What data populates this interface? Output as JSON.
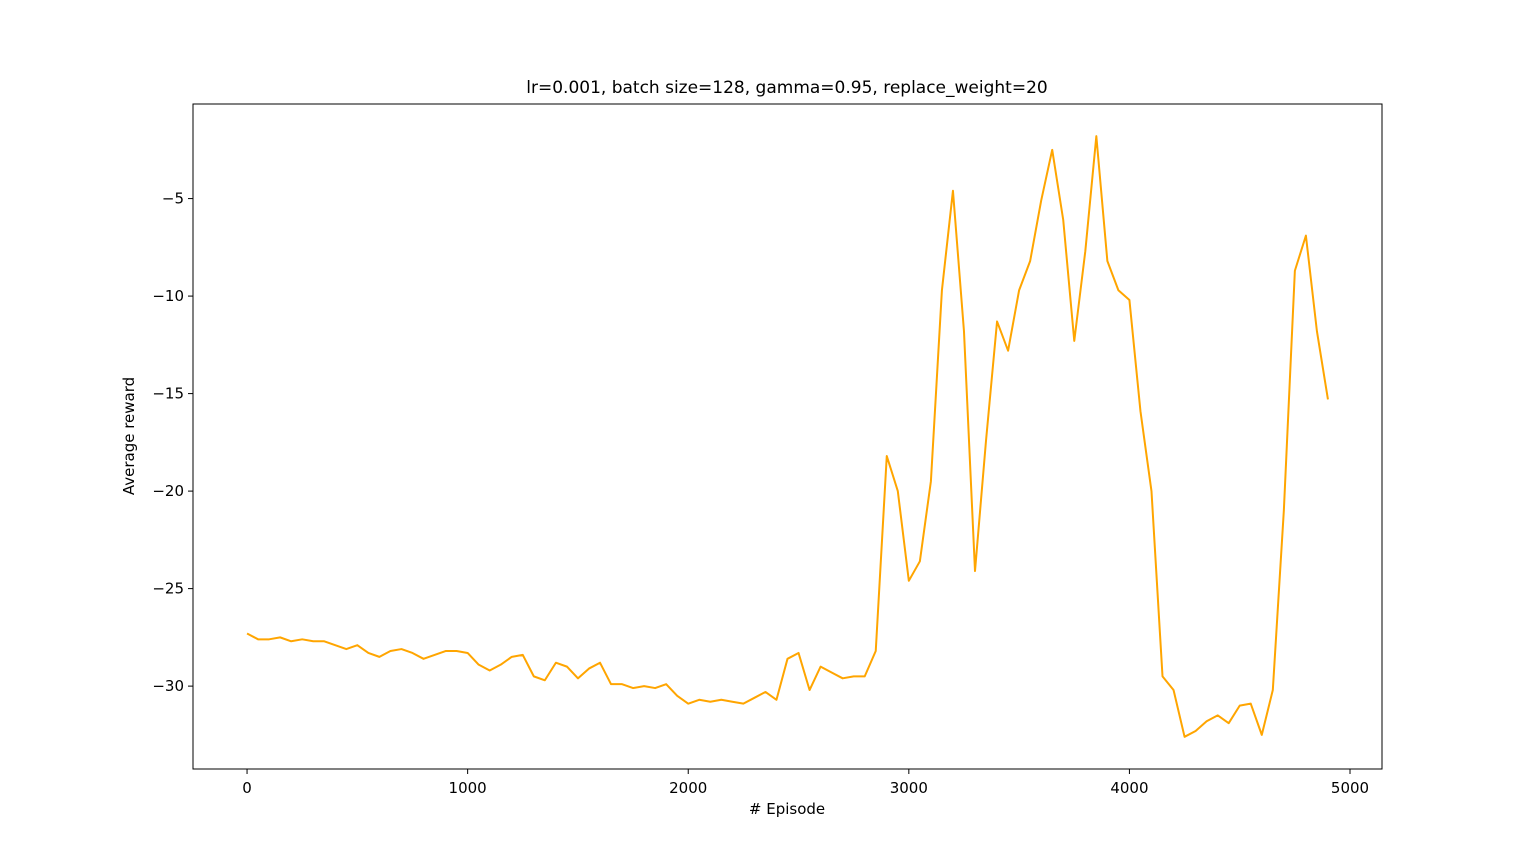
{
  "chart_data": {
    "type": "line",
    "title": "lr=0.001, batch size=128, gamma=0.95, replace_weight=20",
    "xlabel": "# Episode",
    "ylabel": "Average reward",
    "x": [
      0,
      50,
      100,
      150,
      200,
      250,
      300,
      350,
      400,
      450,
      500,
      550,
      600,
      650,
      700,
      750,
      800,
      850,
      900,
      950,
      1000,
      1050,
      1100,
      1150,
      1200,
      1250,
      1300,
      1350,
      1400,
      1450,
      1500,
      1550,
      1600,
      1650,
      1700,
      1750,
      1800,
      1850,
      1900,
      1950,
      2000,
      2050,
      2100,
      2150,
      2200,
      2250,
      2300,
      2350,
      2400,
      2450,
      2500,
      2550,
      2600,
      2650,
      2700,
      2750,
      2800,
      2850,
      2900,
      2950,
      3000,
      3050,
      3100,
      3150,
      3200,
      3250,
      3300,
      3350,
      3400,
      3450,
      3500,
      3550,
      3600,
      3650,
      3700,
      3750,
      3800,
      3850,
      3900,
      3950,
      4000,
      4050,
      4100,
      4150,
      4200,
      4250,
      4300,
      4350,
      4400,
      4450,
      4500,
      4550,
      4600,
      4650,
      4700,
      4750,
      4800,
      4850,
      4900
    ],
    "series": [
      {
        "name": "Average reward",
        "color": "#ffa500",
        "values": [
          -27.3,
          -27.6,
          -27.6,
          -27.5,
          -27.7,
          -27.6,
          -27.7,
          -27.7,
          -27.9,
          -28.1,
          -27.9,
          -28.3,
          -28.5,
          -28.2,
          -28.1,
          -28.3,
          -28.6,
          -28.4,
          -28.2,
          -28.2,
          -28.3,
          -28.9,
          -29.2,
          -28.9,
          -28.5,
          -28.4,
          -29.5,
          -29.7,
          -28.8,
          -29.0,
          -29.6,
          -29.1,
          -28.8,
          -29.9,
          -29.9,
          -30.1,
          -30.0,
          -30.1,
          -29.9,
          -30.5,
          -30.9,
          -30.7,
          -30.8,
          -30.7,
          -30.8,
          -30.9,
          -30.6,
          -30.3,
          -30.7,
          -28.6,
          -28.3,
          -30.2,
          -29.0,
          -29.3,
          -29.6,
          -29.5,
          -29.5,
          -28.2,
          -18.2,
          -20.0,
          -24.6,
          -23.6,
          -19.5,
          -9.7,
          -4.6,
          -11.8,
          -24.1,
          -17.4,
          -11.3,
          -12.8,
          -9.7,
          -8.2,
          -5.1,
          -2.5,
          -6.1,
          -12.3,
          -7.7,
          -1.8,
          -8.2,
          -9.7,
          -10.2,
          -15.9,
          -20.0,
          -29.5,
          -30.2,
          -32.6,
          -32.3,
          -31.8,
          -31.5,
          -31.9,
          -31.0,
          -30.9,
          -32.5,
          -30.2,
          -21.0,
          -8.7,
          -6.9,
          -11.8,
          -15.3
        ]
      }
    ],
    "xlim": [
      -245,
      5145
    ],
    "ylim": [
      -34.25,
      -0.15
    ],
    "xticks": [
      0,
      1000,
      2000,
      3000,
      4000,
      5000
    ],
    "yticks": [
      {
        "value": -30,
        "label": "−30"
      },
      {
        "value": -25,
        "label": "−25"
      },
      {
        "value": -20,
        "label": "−20"
      },
      {
        "value": -15,
        "label": "−15"
      },
      {
        "value": -10,
        "label": "−10"
      },
      {
        "value": -5,
        "label": "−5"
      }
    ]
  }
}
